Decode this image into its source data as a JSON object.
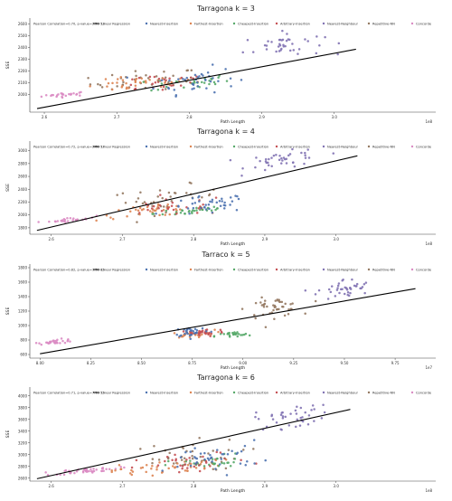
{
  "colors": {
    "Nearest-Insertion": "#4c72b0",
    "Farthest-Insertion": "#dd8452",
    "Cheapest-Insertion": "#55a868",
    "Arbitrary-Insertion": "#c44e52",
    "Nearest-Neighbour": "#8172b3",
    "Repetitive-NN": "#937860",
    "Concorde": "#da8bc3",
    "regression": "#000000",
    "grid": "#dddddd",
    "axis": "#444444"
  },
  "legend_labels": [
    "Linear Regression",
    "Nearest-Insertion",
    "Farthest-Insertion",
    "Cheapest-Insertion",
    "Arbitrary-Insertion",
    "Nearest-Neighbour",
    "Repetitive-NN",
    "Concorde"
  ],
  "chart_data": [
    {
      "type": "scatter",
      "title": "Tarragona k = 3",
      "xlabel": "Path Length",
      "ylabel": "SSE",
      "xlim": [
        2.58,
        3.14
      ],
      "ylim": [
        1850,
        2650
      ],
      "xticks": [
        2.6,
        2.7,
        2.8,
        2.9,
        3.0
      ],
      "xtick_labels": [
        "2.6",
        "2.7",
        "2.8",
        "2.9",
        "3.0"
      ],
      "yticks": [
        2000,
        2100,
        2200,
        2300,
        2400,
        2500,
        2600
      ],
      "ytick_labels": [
        "2000",
        "2100",
        "2200",
        "2300",
        "2400",
        "2500",
        "2600"
      ],
      "offset_text": "1e8",
      "correlation_text": "Pearson Correlation=0.70, p-value=2.2e-53",
      "regression": {
        "x": [
          2.59,
          3.03
        ],
        "y": [
          1880,
          2385
        ]
      },
      "legend_position": "top",
      "grid": false
    },
    {
      "type": "scatter",
      "title": "Tarragona k = 4",
      "xlabel": "Path Length",
      "ylabel": "SSE",
      "xlim": [
        2.57,
        3.14
      ],
      "ylim": [
        1700,
        3150
      ],
      "xticks": [
        2.6,
        2.7,
        2.8,
        2.9,
        3.0
      ],
      "xtick_labels": [
        "2.6",
        "2.7",
        "2.8",
        "2.9",
        "3.0"
      ],
      "yticks": [
        1800,
        2000,
        2200,
        2400,
        2600,
        2800,
        3000
      ],
      "ytick_labels": [
        "1800",
        "2000",
        "2200",
        "2400",
        "2600",
        "2800",
        "3000"
      ],
      "offset_text": "1e8",
      "correlation_text": "Pearson Correlation=0.72, p-value=2.8e-57",
      "regression": {
        "x": [
          2.58,
          3.03
        ],
        "y": [
          1760,
          2920
        ]
      },
      "legend_position": "top",
      "grid": false
    },
    {
      "type": "scatter",
      "title": "Tarraco k = 5",
      "xlabel": "Path Length",
      "ylabel": "SSE",
      "xlim": [
        7.95,
        9.95
      ],
      "ylim": [
        550,
        1850
      ],
      "xticks": [
        8.0,
        8.25,
        8.5,
        8.75,
        9.0,
        9.25,
        9.5,
        9.75
      ],
      "xtick_labels": [
        "8.00",
        "8.25",
        "8.50",
        "8.75",
        "9.00",
        "9.25",
        "9.50",
        "9.75"
      ],
      "yticks": [
        600,
        800,
        1000,
        1200,
        1400,
        1600,
        1800
      ],
      "ytick_labels": [
        "600",
        "800",
        "1000",
        "1200",
        "1400",
        "1600",
        "1800"
      ],
      "offset_text": "1e7",
      "correlation_text": "Pearson Correlation=0.82, p-value=1.3e-85",
      "regression": {
        "x": [
          8.0,
          9.85
        ],
        "y": [
          610,
          1510
        ]
      },
      "legend_position": "top",
      "grid": false
    },
    {
      "type": "scatter",
      "title": "Tarragona k = 6",
      "xlabel": "Path Length",
      "ylabel": "SSE",
      "xlim": [
        2.57,
        3.14
      ],
      "ylim": [
        2550,
        4150
      ],
      "xticks": [
        2.6,
        2.7,
        2.8,
        2.9,
        3.0
      ],
      "xtick_labels": [
        "2.6",
        "2.7",
        "2.8",
        "2.9",
        "3.0"
      ],
      "yticks": [
        2600,
        2800,
        3000,
        3200,
        3400,
        3600,
        3800,
        4000
      ],
      "ytick_labels": [
        "2600",
        "2800",
        "3000",
        "3200",
        "3400",
        "3600",
        "3800",
        "4000"
      ],
      "offset_text": "1e8",
      "correlation_text": "Pearson Correlation=0.71, p-value=7.1e-55",
      "regression": {
        "x": [
          2.58,
          3.02
        ],
        "y": [
          2590,
          3770
        ]
      },
      "legend_position": "top",
      "grid": false
    }
  ]
}
